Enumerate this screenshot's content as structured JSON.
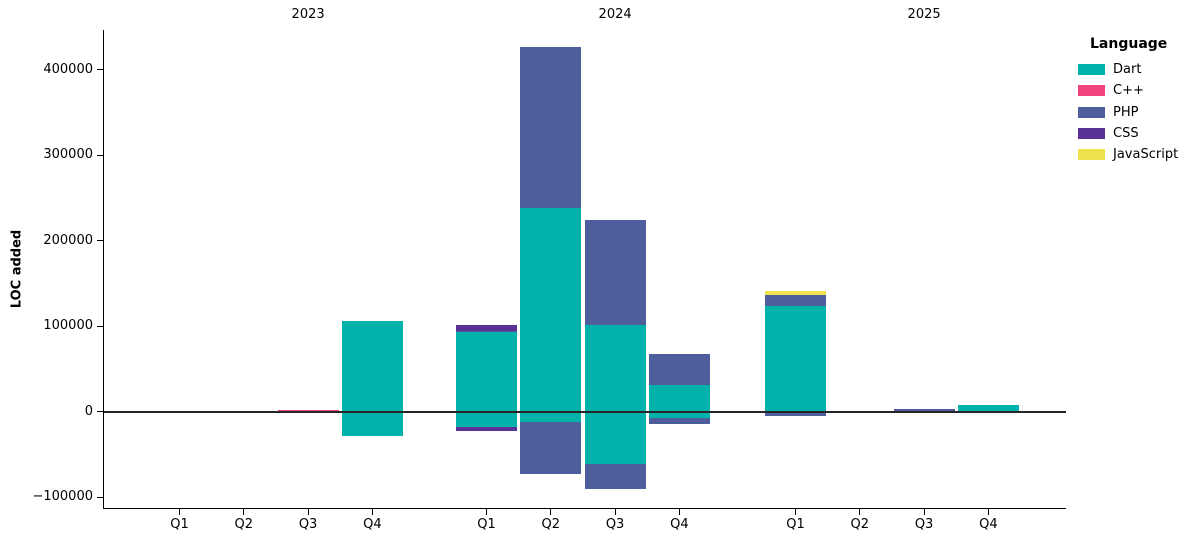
{
  "legend": {
    "title": "Language",
    "items": [
      {
        "label": "Dart",
        "color": "#00B2A9"
      },
      {
        "label": "C++",
        "color": "#F0437B"
      },
      {
        "label": "PHP",
        "color": "#4E5D9B"
      },
      {
        "label": "CSS",
        "color": "#5A3194"
      },
      {
        "label": "JavaScript",
        "color": "#EFE24C"
      }
    ]
  },
  "chart_data": {
    "type": "bar",
    "stacked": true,
    "title": "",
    "xlabel": "",
    "ylabel": "LOC added",
    "legend_position": "right",
    "grid": false,
    "ylim": [
      -112000,
      447000
    ],
    "yticks": [
      {
        "value": 400000,
        "label": "400000"
      },
      {
        "value": 300000,
        "label": "300000"
      },
      {
        "value": 200000,
        "label": "200000"
      },
      {
        "value": 100000,
        "label": "100000"
      },
      {
        "value": 0,
        "label": "0"
      },
      {
        "value": -100000,
        "label": "−100000"
      }
    ],
    "groups": [
      {
        "year": "2023",
        "quarters": [
          {
            "label": "Q1",
            "segments": []
          },
          {
            "label": "Q2",
            "segments": []
          },
          {
            "label": "Q3",
            "segments": [
              {
                "language": "C++",
                "value": 2500
              }
            ]
          },
          {
            "label": "Q4",
            "segments": [
              {
                "language": "Dart",
                "value": 106000
              },
              {
                "language": "Dart",
                "value": -29000
              }
            ]
          }
        ]
      },
      {
        "year": "2024",
        "quarters": [
          {
            "label": "Q1",
            "segments": [
              {
                "language": "Dart",
                "value": 93500
              },
              {
                "language": "PHP",
                "value": 1200
              },
              {
                "language": "CSS",
                "value": 6400
              },
              {
                "language": "Dart",
                "value": -17900
              },
              {
                "language": "CSS",
                "value": -4300
              }
            ]
          },
          {
            "label": "Q2",
            "segments": [
              {
                "language": "Dart",
                "value": 238000
              },
              {
                "language": "PHP",
                "value": 188500
              },
              {
                "language": "Dart",
                "value": -12500
              },
              {
                "language": "PHP",
                "value": -60500
              }
            ]
          },
          {
            "label": "Q3",
            "segments": [
              {
                "language": "Dart",
                "value": 101500
              },
              {
                "language": "PHP",
                "value": 123000
              },
              {
                "language": "Dart",
                "value": -61000
              },
              {
                "language": "PHP",
                "value": -29800
              }
            ]
          },
          {
            "label": "Q4",
            "segments": [
              {
                "language": "Dart",
                "value": 30700
              },
              {
                "language": "PHP",
                "value": 36700
              },
              {
                "language": "Dart",
                "value": -7400
              },
              {
                "language": "PHP",
                "value": -7000
              }
            ]
          }
        ]
      },
      {
        "year": "2025",
        "quarters": [
          {
            "label": "Q1",
            "segments": [
              {
                "language": "Dart",
                "value": 123800
              },
              {
                "language": "PHP",
                "value": 13200
              },
              {
                "language": "JavaScript",
                "value": 4300
              },
              {
                "language": "PHP",
                "value": -5400
              }
            ]
          },
          {
            "label": "Q2",
            "segments": []
          },
          {
            "label": "Q3",
            "segments": [
              {
                "language": "PHP",
                "value": 2800
              }
            ]
          },
          {
            "label": "Q4",
            "segments": [
              {
                "language": "Dart",
                "value": 7800
              }
            ]
          }
        ]
      }
    ]
  }
}
